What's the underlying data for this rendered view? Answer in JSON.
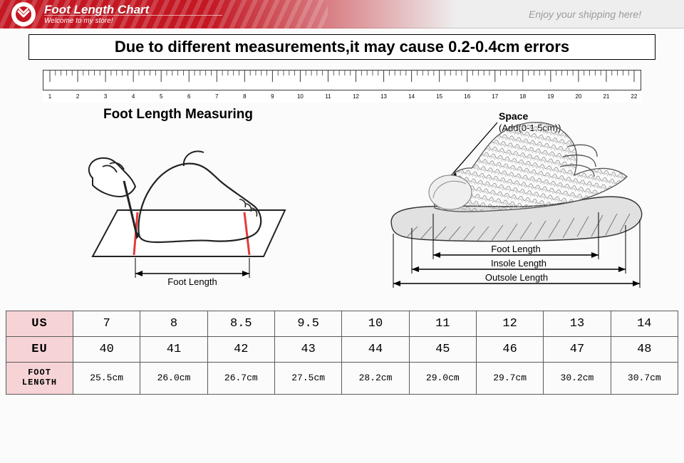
{
  "banner": {
    "title": "Foot Length Chart",
    "subtitle": "Welcome to my store!",
    "right_text": "Enjoy your shipping here!",
    "accent_color": "#c31722",
    "logo_color": "#c31722"
  },
  "notice": "Due to different measurements,it may cause 0.2-0.4cm errors",
  "ruler": {
    "start": 1,
    "end": 22,
    "major_tick_height": 16,
    "minor_tick_height": 7,
    "stroke": "#3b3b3b",
    "font_size": 8
  },
  "diagram_left": {
    "title": "Foot Length Measuring",
    "label": "Foot Length",
    "mark_color": "#e43a3a",
    "stroke": "#222"
  },
  "diagram_right": {
    "space_label": "Space",
    "space_value": "(Add(0-1.5cm))",
    "foot_label": "Foot Length",
    "insole_label": "Insole Length",
    "outsole_label": "Outsole Length",
    "stroke": "#333",
    "fill_scribble": "#9a9a9a"
  },
  "size_table": {
    "header_bg": "#f6d4d6",
    "border": "#5b5b5b",
    "rows": [
      {
        "label": "US",
        "cells": [
          "7",
          "8",
          "8.5",
          "9.5",
          "10",
          "11",
          "12",
          "13",
          "14"
        ]
      },
      {
        "label": "EU",
        "cells": [
          "40",
          "41",
          "42",
          "43",
          "44",
          "45",
          "46",
          "47",
          "48"
        ]
      },
      {
        "label": "FOOT\nLENGTH",
        "cells": [
          "25.5cm",
          "26.0cm",
          "26.7cm",
          "27.5cm",
          "28.2cm",
          "29.0cm",
          "29.7cm",
          "30.2cm",
          "30.7cm"
        ]
      }
    ]
  }
}
